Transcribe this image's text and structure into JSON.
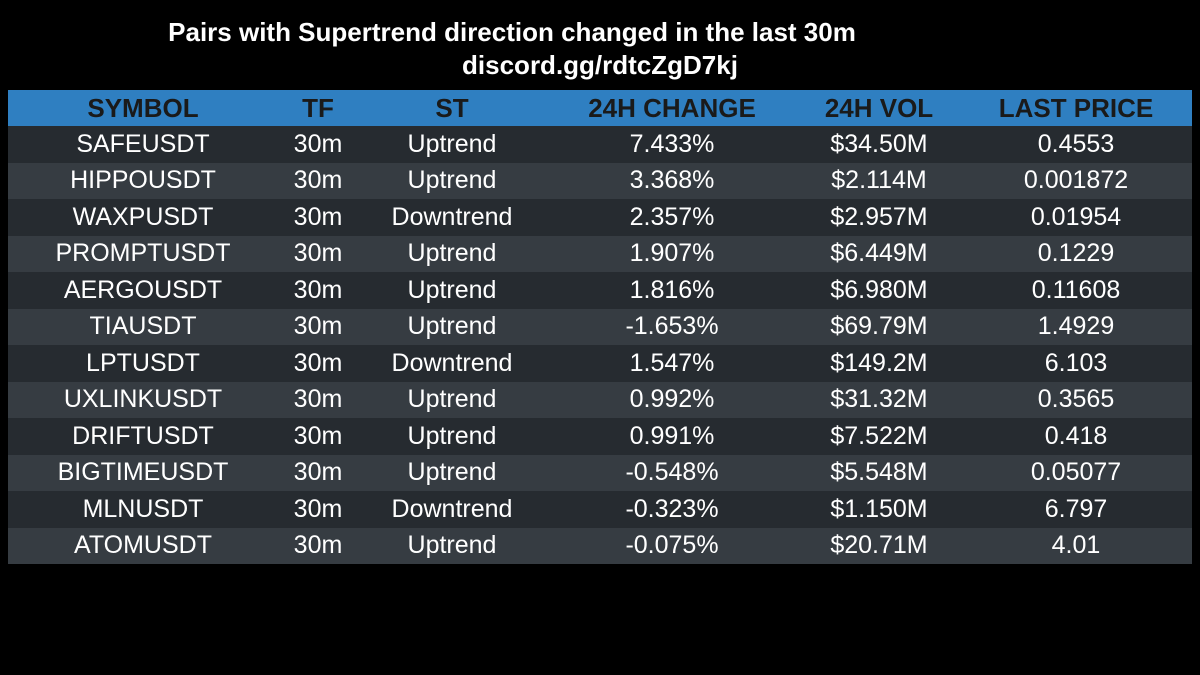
{
  "title": "Pairs with Supertrend direction changed in the last 30m",
  "subtitle": "discord.gg/rdtcZgD7kj",
  "colors": {
    "background": "#000000",
    "header_bg": "#2f7fc1",
    "header_text": "#1a1a1a",
    "row_dark": "#262b30",
    "row_light": "#363c42",
    "text": "#ffffff"
  },
  "table": {
    "headers": {
      "symbol": "SYMBOL",
      "tf": "TF",
      "st": "ST",
      "change": "24H CHANGE",
      "vol": "24H VOL",
      "price": "LAST PRICE"
    },
    "rows": [
      {
        "symbol": "SAFEUSDT",
        "tf": "30m",
        "st": "Uptrend",
        "change": "7.433%",
        "vol": "$34.50M",
        "price": "0.4553"
      },
      {
        "symbol": "HIPPOUSDT",
        "tf": "30m",
        "st": "Uptrend",
        "change": "3.368%",
        "vol": "$2.114M",
        "price": "0.001872"
      },
      {
        "symbol": "WAXPUSDT",
        "tf": "30m",
        "st": "Downtrend",
        "change": "2.357%",
        "vol": "$2.957M",
        "price": "0.01954"
      },
      {
        "symbol": "PROMPTUSDT",
        "tf": "30m",
        "st": "Uptrend",
        "change": "1.907%",
        "vol": "$6.449M",
        "price": "0.1229"
      },
      {
        "symbol": "AERGOUSDT",
        "tf": "30m",
        "st": "Uptrend",
        "change": "1.816%",
        "vol": "$6.980M",
        "price": "0.11608"
      },
      {
        "symbol": "TIAUSDT",
        "tf": "30m",
        "st": "Uptrend",
        "change": "-1.653%",
        "vol": "$69.79M",
        "price": "1.4929"
      },
      {
        "symbol": "LPTUSDT",
        "tf": "30m",
        "st": "Downtrend",
        "change": "1.547%",
        "vol": "$149.2M",
        "price": "6.103"
      },
      {
        "symbol": "UXLINKUSDT",
        "tf": "30m",
        "st": "Uptrend",
        "change": "0.992%",
        "vol": "$31.32M",
        "price": "0.3565"
      },
      {
        "symbol": "DRIFTUSDT",
        "tf": "30m",
        "st": "Uptrend",
        "change": "0.991%",
        "vol": "$7.522M",
        "price": "0.418"
      },
      {
        "symbol": "BIGTIMEUSDT",
        "tf": "30m",
        "st": "Uptrend",
        "change": "-0.548%",
        "vol": "$5.548M",
        "price": "0.05077"
      },
      {
        "symbol": "MLNUSDT",
        "tf": "30m",
        "st": "Downtrend",
        "change": "-0.323%",
        "vol": "$1.150M",
        "price": "6.797"
      },
      {
        "symbol": "ATOMUSDT",
        "tf": "30m",
        "st": "Uptrend",
        "change": "-0.075%",
        "vol": "$20.71M",
        "price": "4.01"
      }
    ]
  }
}
